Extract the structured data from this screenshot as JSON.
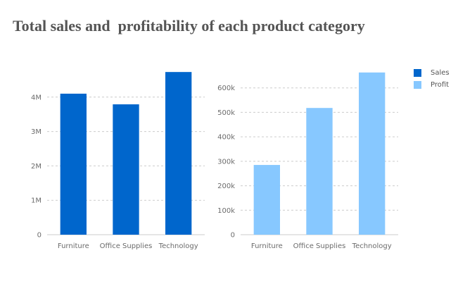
{
  "title": "Total sales and  profitability of each product category",
  "colors": {
    "sales": "#0066CC",
    "profit": "#87C8FF",
    "grid": "#cccccc",
    "axis": "#cccccc"
  },
  "legend": {
    "position": "top-right",
    "items": [
      "Sales",
      "Profit"
    ]
  },
  "chart_data": [
    {
      "type": "bar",
      "categories": [
        "Furniture",
        "Office Supplies",
        "Technology"
      ],
      "series": [
        {
          "name": "Sales",
          "values": [
            4100000,
            3790000,
            4730000
          ]
        }
      ],
      "ylim": [
        0,
        5000000
      ],
      "yticks": [
        0,
        1000000,
        2000000,
        3000000,
        4000000
      ],
      "ytick_labels": [
        "0",
        "1M",
        "2M",
        "3M",
        "4M"
      ],
      "grid": true
    },
    {
      "type": "bar",
      "categories": [
        "Furniture",
        "Office Supplies",
        "Technology"
      ],
      "series": [
        {
          "name": "Profit",
          "values": [
            285000,
            518000,
            663000
          ]
        }
      ],
      "ylim": [
        0,
        700000
      ],
      "yticks": [
        0,
        100000,
        200000,
        300000,
        400000,
        500000,
        600000
      ],
      "ytick_labels": [
        "0",
        "100k",
        "200k",
        "300k",
        "400k",
        "500k",
        "600k"
      ],
      "grid": true
    }
  ]
}
